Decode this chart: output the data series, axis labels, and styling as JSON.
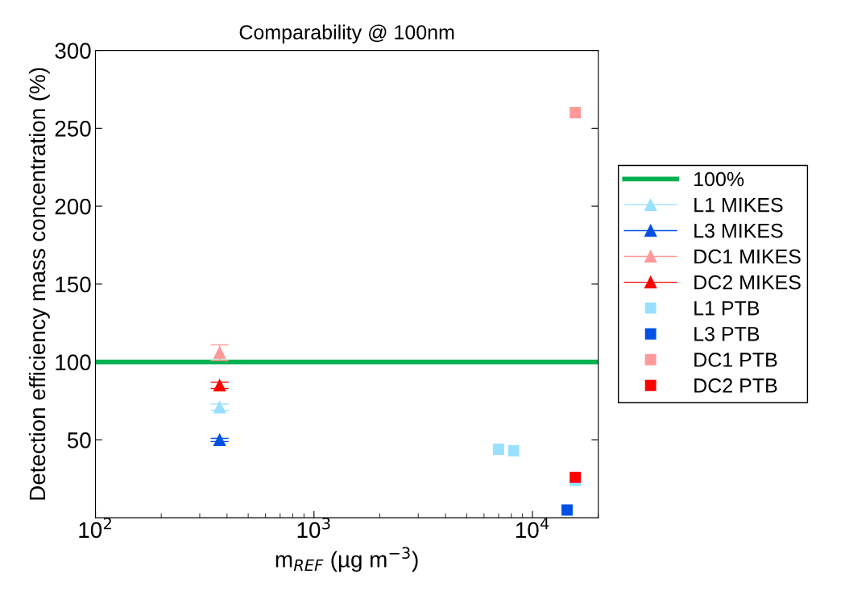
{
  "chart_data": {
    "type": "scatter",
    "title": "Comparability @ 100nm",
    "xlabel": "m$_{REF}$ (µg m$^{−3}$)",
    "ylabel": "Detection efficiency mass concentration (%)",
    "log": "x",
    "xlim": [
      100,
      20000
    ],
    "xticks": [
      {
        "value": 100,
        "label": "10$^{2}$"
      },
      {
        "value": 1000,
        "label": "10$^{3}$"
      },
      {
        "value": 10000,
        "label": "10$^{4}$"
      }
    ],
    "ylim": [
      0,
      300
    ],
    "yticks": [
      50,
      100,
      150,
      200,
      250,
      300
    ],
    "grid": false,
    "legend": "right",
    "ref_lines": [
      {
        "axis": "y",
        "value": 100,
        "label": "100%",
        "color": "#00b050",
        "line_style": "solid"
      }
    ],
    "series": [
      {
        "name": "L1 MIKES",
        "type": "line",
        "marker": "triangle",
        "color": "#99e0ff",
        "x": [
          370
        ],
        "values": [
          71
        ],
        "errors": [
          2
        ]
      },
      {
        "name": "L3 MIKES",
        "type": "line",
        "marker": "triangle",
        "color": "#0050e6",
        "x": [
          370
        ],
        "values": [
          50
        ],
        "errors": [
          1
        ]
      },
      {
        "name": "DC1 MIKES",
        "type": "line",
        "marker": "triangle",
        "color": "#ff9999",
        "x": [
          370
        ],
        "values": [
          106
        ],
        "errors": [
          5
        ]
      },
      {
        "name": "DC2 MIKES",
        "type": "line",
        "marker": "triangle",
        "color": "#ff0000",
        "x": [
          370
        ],
        "values": [
          85
        ],
        "errors": [
          2
        ]
      },
      {
        "name": "L1 PTB",
        "marker": "square",
        "color": "#99e0ff",
        "x": [
          7000,
          8200,
          15700
        ],
        "values": [
          44,
          43,
          24
        ]
      },
      {
        "name": "L3 PTB",
        "marker": "square",
        "color": "#0050e6",
        "x": [
          14400
        ],
        "values": [
          5
        ]
      },
      {
        "name": "DC1 PTB",
        "marker": "square",
        "color": "#ff9999",
        "x": [
          15700
        ],
        "values": [
          260
        ]
      },
      {
        "name": "DC2 PTB",
        "marker": "square",
        "color": "#ff0000",
        "x": [
          15700
        ],
        "values": [
          26
        ]
      }
    ]
  }
}
